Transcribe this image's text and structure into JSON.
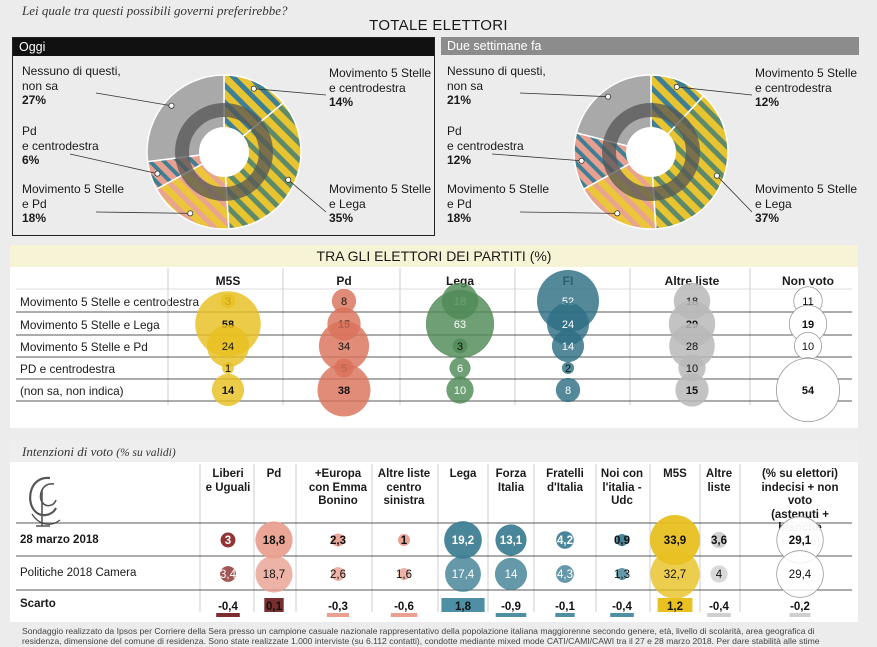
{
  "question": "Lei quale tra questi possibili governi preferirebbe?",
  "total_title": "TOTALE ELETTORI",
  "panels": [
    {
      "header": "Oggi",
      "header_color": "#111111",
      "labels": {
        "nessuno": "Nessuno di questi,\nnon sa",
        "nessuno_val": "27%",
        "pd_cdx": "Pd\ne centrodestra",
        "pd_cdx_val": "6%",
        "m5s_pd": "Movimento 5 Stelle\ne Pd",
        "m5s_pd_val": "18%",
        "m5s_cdx": "Movimento 5 Stelle\ne centrodestra",
        "m5s_cdx_val": "14%",
        "m5s_lega": "Movimento 5 Stelle\ne Lega",
        "m5s_lega_val": "35%"
      }
    },
    {
      "header": "Due settimane fa",
      "header_color": "#8c8c8c",
      "labels": {
        "nessuno": "Nessuno di questi,\nnon sa",
        "nessuno_val": "21%",
        "pd_cdx": "Pd\ne centrodestra",
        "pd_cdx_val": "12%",
        "m5s_pd": "Movimento 5 Stelle\ne Pd",
        "m5s_pd_val": "18%",
        "m5s_cdx": "Movimento 5 Stelle\ne centrodestra",
        "m5s_cdx_val": "12%",
        "m5s_lega": "Movimento 5 Stelle\ne Lega",
        "m5s_lega_val": "37%"
      }
    }
  ],
  "party_title": "TRA GLI ELETTORI DEI PARTITI (%)",
  "party_columns": [
    "M5S",
    "Pd",
    "Lega",
    "FI",
    "Altre liste",
    "Non voto"
  ],
  "party_rows": [
    "Movimento 5 Stelle e centrodestra",
    "Movimento 5 Stelle e Lega",
    "Movimento 5 Stelle e Pd",
    "PD e centrodestra",
    "(non sa, non indica)"
  ],
  "vote_title": "Intenzioni di voto",
  "vote_title_suffix": "(% su validi)",
  "vote_columns": [
    "Liberi\ne Uguali",
    "Pd",
    "+Europa\ncon Emma\nBonino",
    "Altre liste\ncentro\nsinistra",
    "Lega",
    "Forza\nItalia",
    "Fratelli\nd'Italia",
    "Noi con\nl'italia -\nUdc",
    "M5S",
    "Altre\nliste",
    "(% su elettori)\nindecisi + non voto\n(astenuti + bianche\n+ nulle)"
  ],
  "vote_rows": [
    "28 marzo 2018",
    "Politiche 2018 Camera",
    "Scarto"
  ],
  "footnote": "Sondaggio realizzato da Ipsos per Corriere della Sera presso un campione casuale nazionale rappresentativo della popolazione italiana maggiorenne secondo genere, età, livello di scolarità, area geografica di\nresidenza, dimensione del comune di residenza. Sono state realizzate 1.000 interviste (su 6.112 contatti), condotte mediante mixed mode CATI/CAMI/CAWI tra il 27 e 28 marzo 2018. Per dare stabilità alle stime",
  "colors": {
    "m5s": "#e8c020",
    "pd": "#d9735a",
    "lega": "#4f8a57",
    "fi": "#2e6f84",
    "altre": "#b9b9b9",
    "nonvoto": "#ffffff",
    "teal": "#3f7f95",
    "dark_red": "#8b2a2a",
    "pink": "#e9a090",
    "grey": "#a9a9a9",
    "bar_pd": "#7a2e2e",
    "bar_teal": "#4f8fa6"
  },
  "chart_data": [
    {
      "type": "pie",
      "title": "Oggi",
      "categories": [
        "Movimento 5 Stelle e centrodestra",
        "Movimento 5 Stelle e Lega",
        "Movimento 5 Stelle e Pd",
        "Pd e centrodestra",
        "Nessuno di questi, non sa"
      ],
      "values": [
        14,
        35,
        18,
        6,
        27
      ]
    },
    {
      "type": "pie",
      "title": "Due settimane fa",
      "categories": [
        "Movimento 5 Stelle e centrodestra",
        "Movimento 5 Stelle e Lega",
        "Movimento 5 Stelle e Pd",
        "Pd e centrodestra",
        "Nessuno di questi, non sa"
      ],
      "values": [
        12,
        37,
        18,
        12,
        21
      ]
    },
    {
      "type": "table",
      "title": "TRA GLI ELETTORI DEI PARTITI (%)",
      "columns": [
        "M5S",
        "Pd",
        "Lega",
        "FI",
        "Altre liste",
        "Non voto"
      ],
      "rows": [
        "Movimento 5 Stelle e centrodestra",
        "Movimento 5 Stelle e Lega",
        "Movimento 5 Stelle e Pd",
        "PD e centrodestra",
        "(non sa, non indica)"
      ],
      "values": [
        [
          3,
          8,
          18,
          52,
          18,
          11
        ],
        [
          58,
          15,
          63,
          24,
          29,
          19
        ],
        [
          24,
          34,
          3,
          14,
          28,
          10
        ],
        [
          1,
          5,
          6,
          2,
          10,
          6
        ],
        [
          14,
          38,
          10,
          8,
          15,
          54
        ]
      ]
    },
    {
      "type": "table",
      "title": "Intenzioni di voto (% su validi)",
      "columns": [
        "Liberi e Uguali",
        "Pd",
        "+Europa con Emma Bonino",
        "Altre liste centro sinistra",
        "Lega",
        "Forza Italia",
        "Fratelli d'Italia",
        "Noi con l'italia - Udc",
        "M5S",
        "Altre liste",
        "(% su elettori) indecisi + non voto (astenuti + bianche + nulle)"
      ],
      "rows": [
        "28 marzo 2018",
        "Politiche 2018 Camera",
        "Scarto"
      ],
      "values": [
        [
          "3",
          "18,8",
          "2,3",
          "1",
          "19,2",
          "13,1",
          "4,2",
          "0,9",
          "33,9",
          "3,6",
          "29,1"
        ],
        [
          "3,4",
          "18,7",
          "2,6",
          "1,6",
          "17,4",
          "14",
          "4,3",
          "1,3",
          "32,7",
          "4",
          "29,4"
        ],
        [
          "-0,4",
          "0,1",
          "-0,3",
          "-0,6",
          "1,8",
          "-0,9",
          "-0,1",
          "-0,4",
          "1,2",
          "-0,4",
          "-0,2"
        ]
      ]
    }
  ]
}
